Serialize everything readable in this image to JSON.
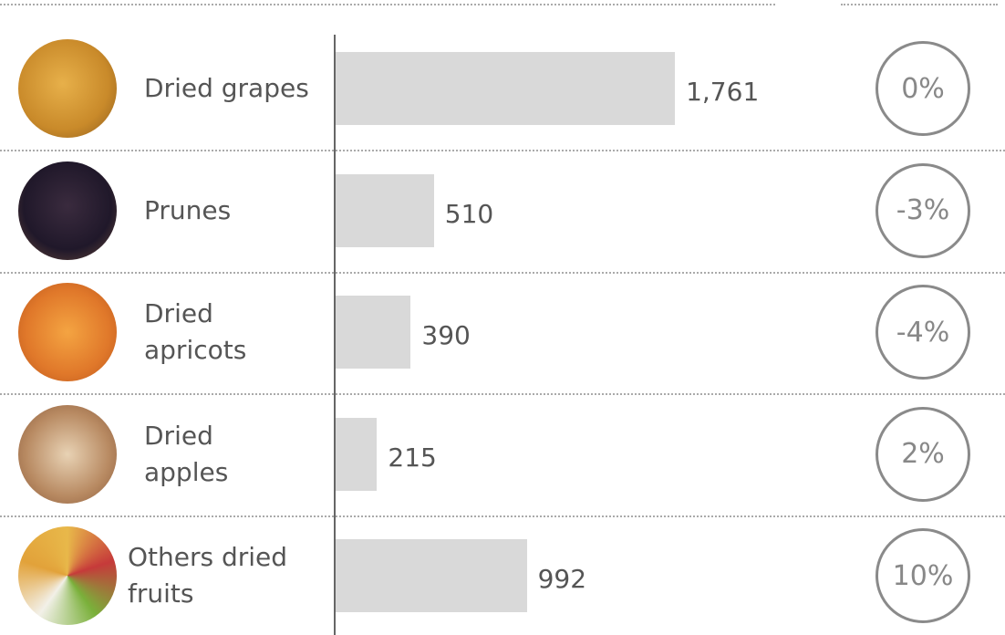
{
  "chart_data": {
    "type": "bar",
    "categories": [
      "Dried grapes",
      "Prunes",
      "Dried\napricots",
      "Dried\napples",
      "Others dried\n fruits"
    ],
    "values": [
      1761,
      510,
      390,
      215,
      992
    ],
    "value_labels": [
      "1,761",
      "510",
      "390",
      "215",
      "992"
    ],
    "color": "#d9d9d9",
    "changes": {
      "values": [
        0,
        -3,
        -4,
        2,
        10
      ],
      "value_labels": [
        "0%",
        "-3%",
        "-4%",
        "2%",
        "10%"
      ]
    }
  }
}
